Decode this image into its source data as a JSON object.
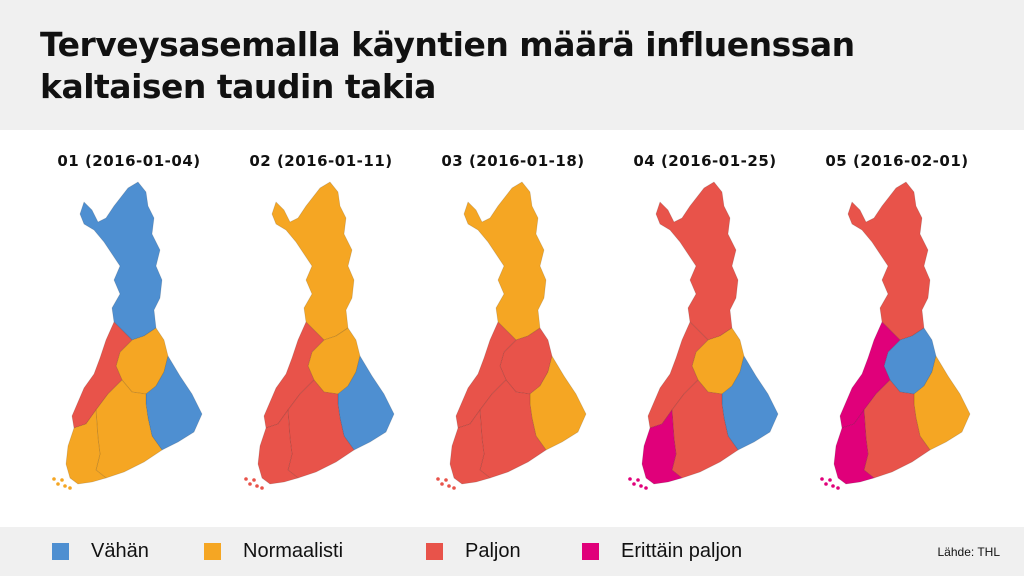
{
  "title_line1": "Terveysasemalla käyntien määrä influenssan",
  "title_line2": "kaltaisen taudin takia",
  "colors": {
    "vahan": "#4e8fd1",
    "normaalisti": "#f5a623",
    "paljon": "#e8534a",
    "erittain": "#e0007a"
  },
  "maps": [
    {
      "label": "01 (2016-01-04)",
      "north": "vahan",
      "center": "normaalisti",
      "west": "paljon",
      "south": "normaalisti",
      "southwest": "normaalisti",
      "east": "vahan"
    },
    {
      "label": "02 (2016-01-11)",
      "north": "normaalisti",
      "center": "normaalisti",
      "west": "paljon",
      "south": "paljon",
      "southwest": "paljon",
      "east": "vahan"
    },
    {
      "label": "03 (2016-01-18)",
      "north": "normaalisti",
      "center": "paljon",
      "west": "paljon",
      "south": "paljon",
      "southwest": "paljon",
      "east": "normaalisti"
    },
    {
      "label": "04 (2016-01-25)",
      "north": "paljon",
      "center": "normaalisti",
      "west": "paljon",
      "south": "paljon",
      "southwest": "erittain",
      "east": "vahan"
    },
    {
      "label": "05 (2016-02-01)",
      "north": "paljon",
      "center": "vahan",
      "west": "erittain",
      "south": "paljon",
      "southwest": "erittain",
      "east": "normaalisti"
    }
  ],
  "legend": [
    {
      "key": "vahan",
      "label": "Vähän"
    },
    {
      "key": "normaalisti",
      "label": "Normaalisti"
    },
    {
      "key": "paljon",
      "label": "Paljon"
    },
    {
      "key": "erittain",
      "label": "Erittäin paljon"
    }
  ],
  "source": "Lähde: THL"
}
